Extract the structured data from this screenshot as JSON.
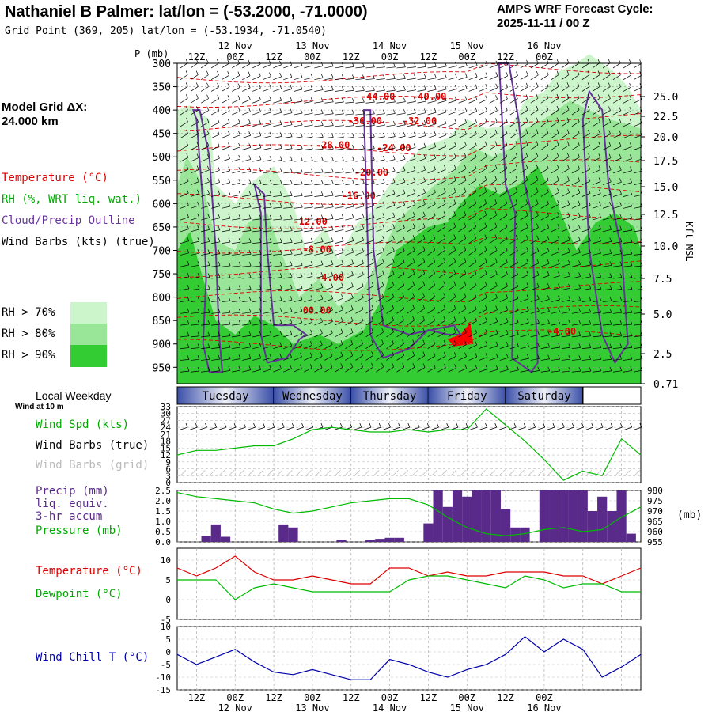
{
  "header": {
    "title": "Nathaniel B Palmer:  lat/lon = (-53.2000, -71.0000)",
    "subtitle": "Grid Point (369, 205) lat/lon = (-53.1934, -71.0540)",
    "cycle_line1": "AMPS WRF Forecast Cycle:",
    "cycle_line2": "2025-11-11 / 00  Z",
    "model_grid_line1": "Model Grid ΔX:",
    "model_grid_line2": " 24.000 km"
  },
  "legend": {
    "temperature": "Temperature (°C)",
    "rh": "RH (%, WRT liq. wat.)",
    "cloud": "Cloud/Precip Outline",
    "wind": "Wind Barbs (kts) (true)",
    "rh70": "RH > 70%",
    "rh80": "RH > 80%",
    "rh90": "RH > 90%",
    "local_weekday": "Local Weekday",
    "wind_10m": "Wind at 10 m",
    "wind_spd": "Wind Spd (kts)",
    "wind_barbs_true": "Wind Barbs (true)",
    "wind_barbs_grid": "Wind Barbs (grid)",
    "precip1": "Precip (mm)",
    "precip2": "liq. equiv.",
    "precip3": "3-hr accum",
    "pressure": "Pressure (mb)",
    "temp2": "Temperature (°C)",
    "dewpoint": "Dewpoint (°C)",
    "windchill": "Wind Chill T (°C)",
    "p_axis": "P (mb)",
    "kft": "Kft MSL",
    "mb_right": "(mb)"
  },
  "colors": {
    "rh70": "#ccf5cc",
    "rh80": "#99e699",
    "rh90": "#33cc33",
    "temperature": "#dd0000",
    "cloud": "#663399",
    "wind_spd": "#00bb00",
    "dewpoint": "#00bb00",
    "precip": "#5a2a8a",
    "windchill": "#0000aa",
    "weekday_band": "#3b4fa8"
  },
  "time_axis": {
    "top_date_labels": [
      "12 Nov",
      "13 Nov",
      "14 Nov",
      "15 Nov",
      "16 Nov"
    ],
    "hour_labels": [
      "12Z",
      "00Z",
      "12Z",
      "00Z",
      "12Z",
      "00Z",
      "12Z",
      "00Z",
      "12Z",
      "00Z"
    ],
    "bottom_date_labels": [
      "12 Nov",
      "13 Nov",
      "14 Nov",
      "15 Nov",
      "16 Nov"
    ]
  },
  "weekdays": [
    "Tuesday",
    "Wednesday",
    "Thursday",
    "Friday",
    "Saturday"
  ],
  "chart_data": [
    {
      "type": "heatmap",
      "name": "time-height cross section",
      "y_left_ticks": [
        "300",
        "350",
        "400",
        "450",
        "500",
        "550",
        "600",
        "650",
        "700",
        "750",
        "800",
        "850",
        "900",
        "950"
      ],
      "y_right_ticks": [
        "25.0",
        "22.5",
        "20.0",
        "17.5",
        "15.0",
        "12.5",
        "10.0",
        "7.5",
        "5.0",
        "2.5",
        "0.71"
      ],
      "temperature_labels": [
        "-44.00",
        "-40.00",
        "-36.00",
        "-32.00",
        "-28.00",
        "-24.00",
        "-20.00",
        "-16.00",
        "-12.00",
        "-8.00",
        "-4.00",
        "00.00",
        "-4.00"
      ]
    },
    {
      "type": "line",
      "name": "wind speed",
      "yticks": [
        "33",
        "30",
        "27",
        "24",
        "21",
        "18",
        "15",
        "12",
        "9",
        "6",
        "3",
        "0"
      ],
      "x_hours": [
        0,
        6,
        12,
        18,
        24,
        30,
        36,
        42,
        48,
        54,
        60,
        66,
        72,
        78,
        84,
        90,
        96,
        102,
        108,
        114,
        120,
        126,
        132,
        138,
        144
      ],
      "values": [
        12,
        14,
        14,
        15,
        16,
        16,
        19,
        23,
        24,
        23,
        22,
        22,
        23,
        22,
        23,
        23,
        32,
        25,
        18,
        10,
        1,
        5,
        3,
        19,
        12
      ],
      "ylim": [
        0,
        33
      ]
    },
    {
      "type": "bar",
      "name": "precipitation 3-hr accum",
      "yticks": [
        "2.5",
        "2.0",
        "1.5",
        "1.0",
        "0.5",
        "0.0"
      ],
      "ylim": [
        0,
        2.5
      ],
      "x_hours": [
        9,
        12,
        15,
        33,
        36,
        51,
        60,
        63,
        66,
        69,
        78,
        81,
        84,
        87,
        90,
        93,
        96,
        99,
        102,
        105,
        108,
        114,
        117,
        120,
        123,
        126,
        129,
        132,
        135,
        138,
        141
      ],
      "values": [
        0.3,
        0.85,
        0.25,
        0.85,
        0.7,
        0.1,
        0.1,
        0.15,
        0.2,
        0.2,
        0.9,
        2.5,
        1.7,
        2.5,
        2.2,
        2.5,
        2.5,
        2.5,
        1.6,
        0.7,
        0.7,
        2.5,
        2.5,
        2.5,
        2.5,
        2.5,
        1.5,
        2.2,
        1.5,
        2.5,
        0.4
      ]
    },
    {
      "type": "line",
      "name": "pressure",
      "yticks_right": [
        "980",
        "975",
        "970",
        "965",
        "960",
        "955"
      ],
      "ylim": [
        955,
        980
      ],
      "x_hours": [
        0,
        6,
        12,
        18,
        24,
        30,
        36,
        42,
        48,
        54,
        60,
        66,
        72,
        78,
        84,
        90,
        96,
        102,
        108,
        114,
        120,
        126,
        132,
        138,
        144
      ],
      "values": [
        979,
        977,
        976,
        975,
        974,
        971,
        969,
        970,
        972,
        974,
        975,
        976,
        976,
        973,
        967,
        962,
        959,
        958,
        959,
        961,
        962,
        960,
        961,
        967,
        972
      ]
    },
    {
      "type": "line",
      "name": "temperature and dewpoint",
      "yticks": [
        "10",
        "5",
        "0",
        "-5"
      ],
      "ylim": [
        -5,
        13
      ],
      "x_hours": [
        0,
        6,
        12,
        18,
        24,
        30,
        36,
        42,
        48,
        54,
        60,
        66,
        72,
        78,
        84,
        90,
        96,
        102,
        108,
        114,
        120,
        126,
        132,
        138,
        144
      ],
      "series": [
        {
          "values": [
            8,
            6,
            8,
            11,
            7,
            5,
            5,
            6,
            5,
            4,
            4,
            8,
            8,
            6,
            7,
            6,
            6,
            7,
            7,
            7,
            6,
            6,
            4,
            6,
            8
          ]
        },
        {
          "values": [
            5,
            5,
            5,
            0,
            3,
            4,
            3,
            2,
            2,
            2,
            2,
            2,
            5,
            6,
            6,
            5,
            4,
            3,
            6,
            5,
            3,
            4,
            4,
            2,
            2
          ]
        }
      ]
    },
    {
      "type": "line",
      "name": "wind chill",
      "yticks": [
        "10",
        "5",
        "0",
        "-5",
        "-10",
        "-15"
      ],
      "ylim": [
        -15,
        10
      ],
      "x_hours": [
        0,
        6,
        12,
        18,
        24,
        30,
        36,
        42,
        48,
        54,
        60,
        66,
        72,
        78,
        84,
        90,
        96,
        102,
        108,
        114,
        120,
        126,
        132,
        138,
        144
      ],
      "values": [
        -1,
        -5,
        -2,
        1,
        -4,
        -8,
        -9,
        -7,
        -9,
        -11,
        -11,
        -3,
        -5,
        -8,
        -10,
        -7,
        -5,
        -1,
        6,
        0,
        5,
        1,
        -10,
        -6,
        -1
      ]
    }
  ]
}
